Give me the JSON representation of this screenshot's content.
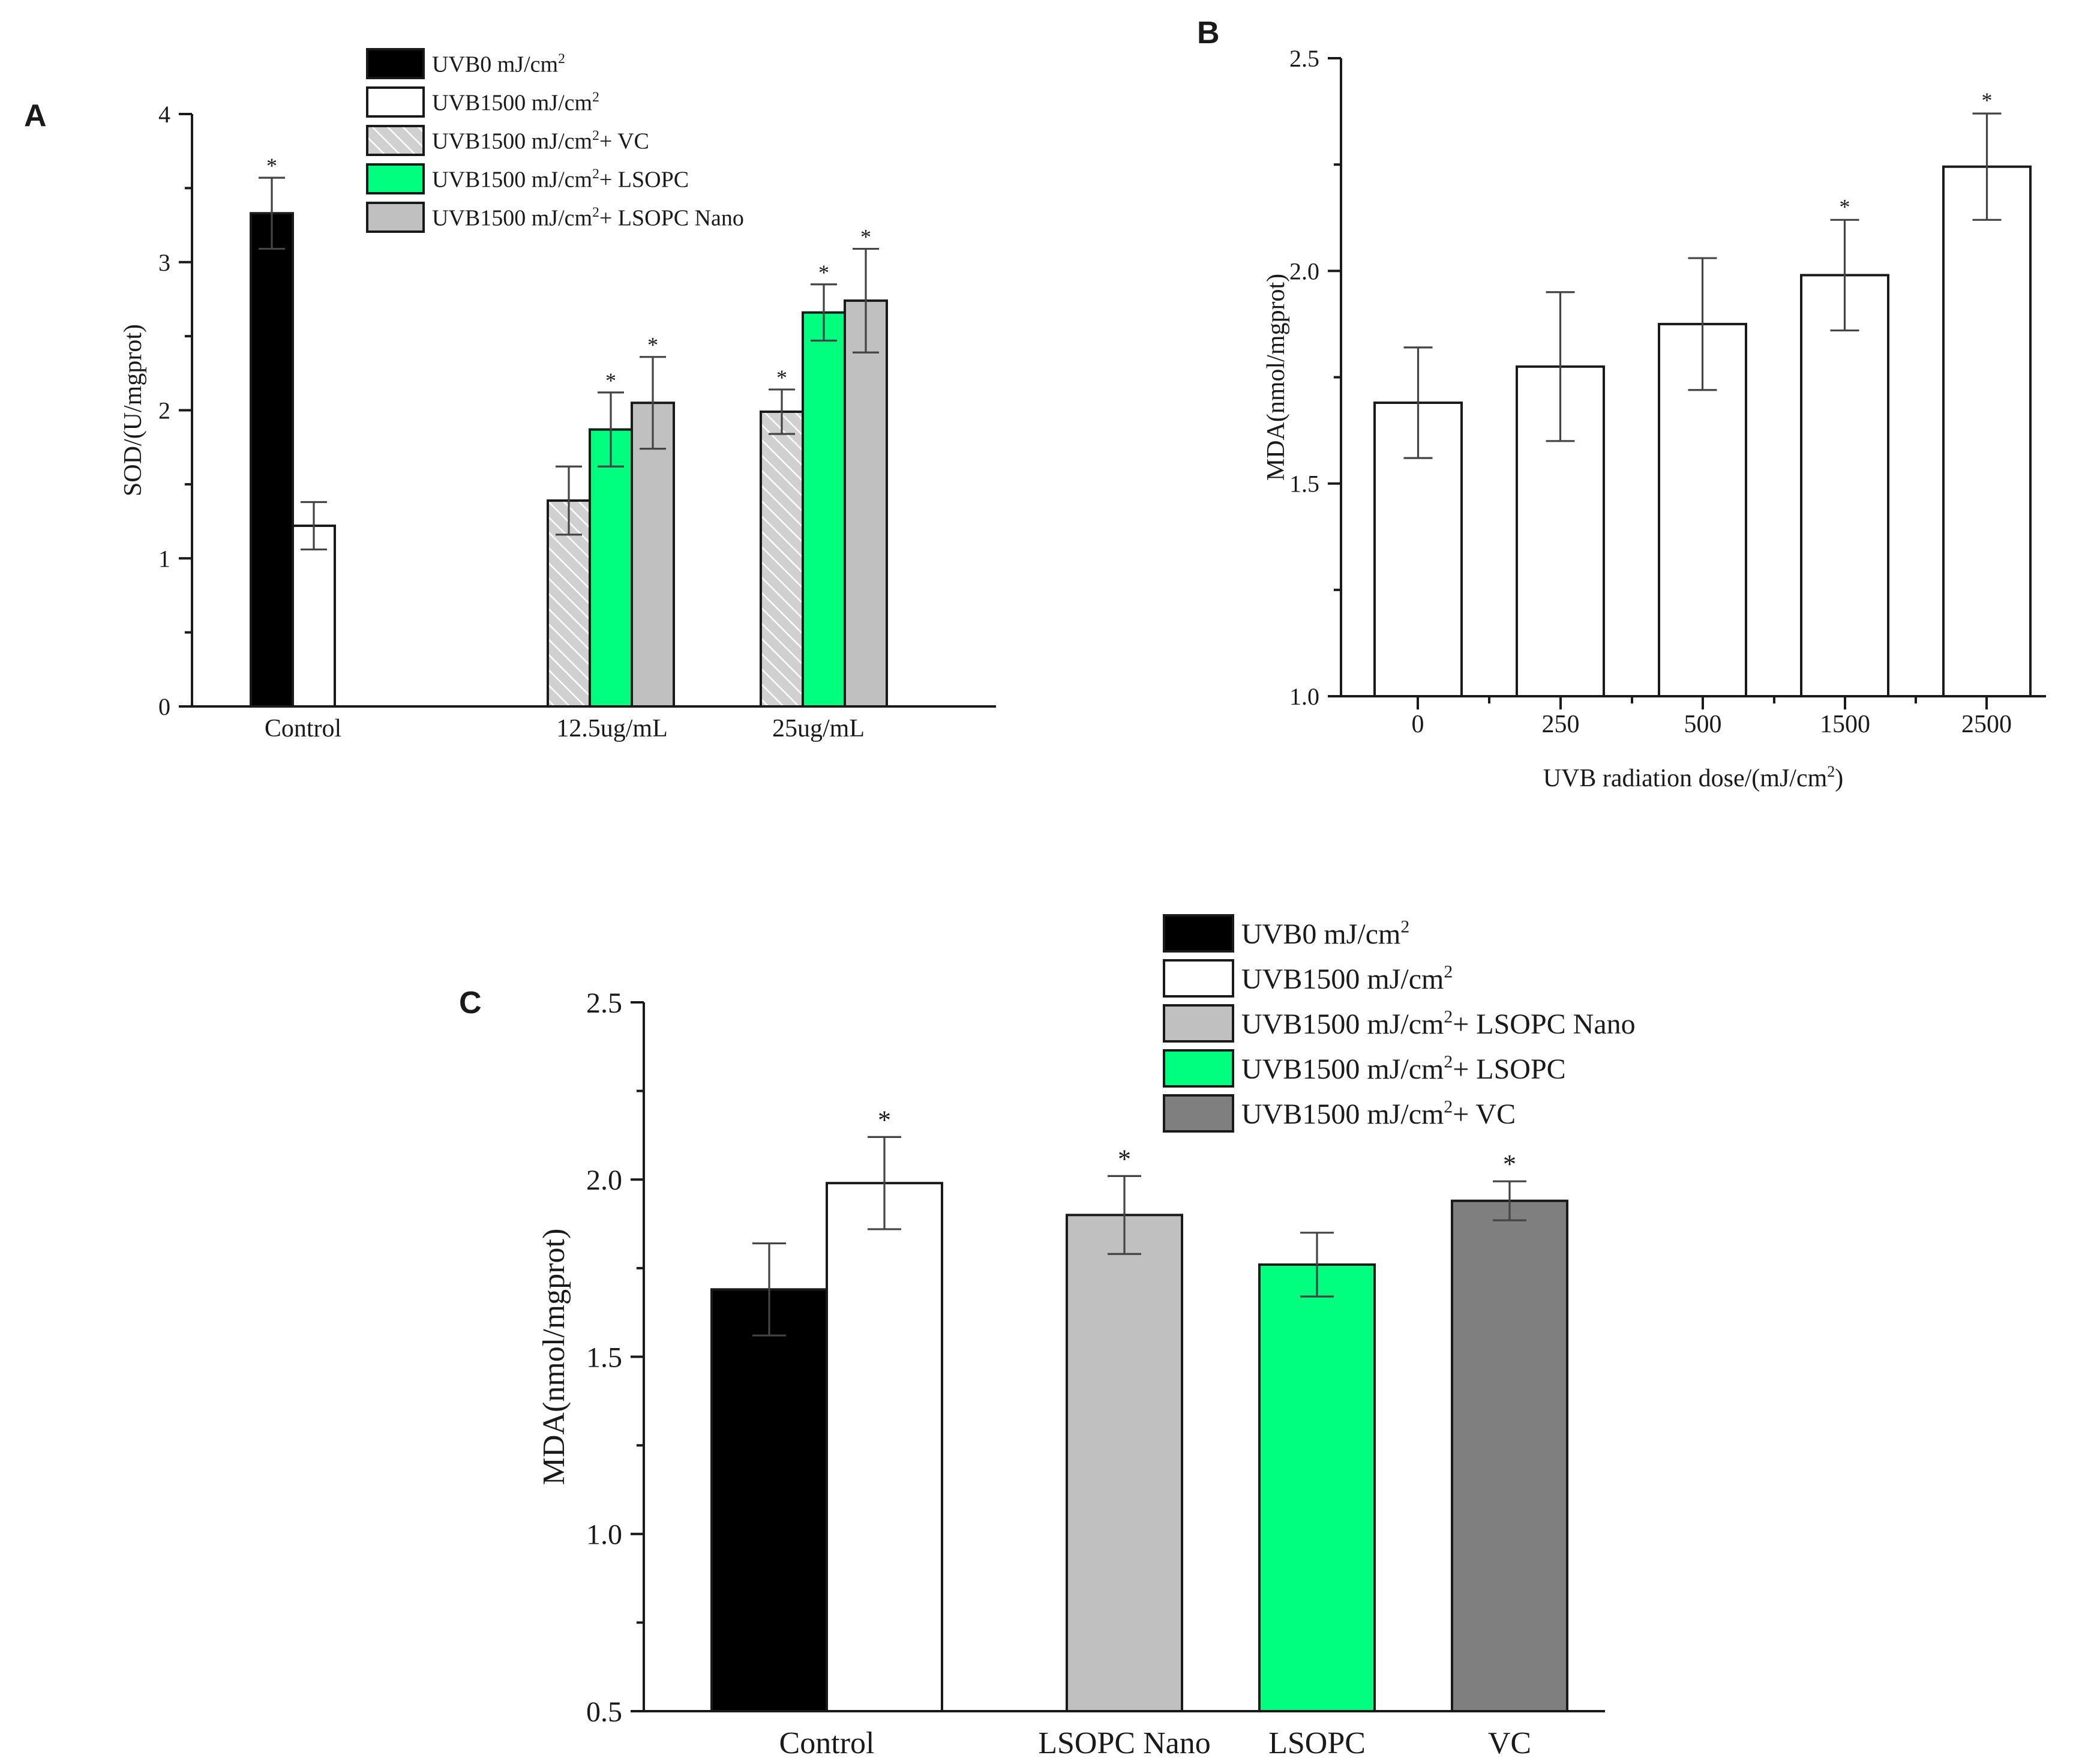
{
  "colors": {
    "uvb0": "#000000",
    "uvb1500": "#ffffff",
    "vc_hatch": "#d0d0d0",
    "lsopc": "#00ff7f",
    "lsopc_nano": "#c0c0c0",
    "vc_dark": "#7f7f7f",
    "axis": "#1a1a1a"
  },
  "chart_data": [
    {
      "panel": "A",
      "type": "bar",
      "title": "",
      "xlabel": "",
      "ylabel": "SOD/(U/mgprot)",
      "ylim": [
        0,
        4
      ],
      "yticks": [
        "0",
        "1",
        "2",
        "3",
        "4"
      ],
      "categories": [
        "Control",
        "12.5ug/mL",
        "25ug/mL"
      ],
      "legend": {
        "placement": "top-center",
        "entries": [
          {
            "text": "UVB0 mJ/cm",
            "sup": "2",
            "suffix": "",
            "fill": "#000000",
            "pattern": "solid"
          },
          {
            "text": "UVB1500 mJ/cm",
            "sup": "2",
            "suffix": "",
            "fill": "#ffffff",
            "pattern": "solid"
          },
          {
            "text": "UVB1500 mJ/cm",
            "sup": "2",
            "suffix": "+ VC",
            "fill": "#d0d0d0",
            "pattern": "hatch"
          },
          {
            "text": "UVB1500 mJ/cm",
            "sup": "2",
            "suffix": "+ LSOPC",
            "fill": "#00ff7f",
            "pattern": "solid"
          },
          {
            "text": "UVB1500 mJ/cm",
            "sup": "2",
            "suffix": "+ LSOPC Nano",
            "fill": "#c0c0c0",
            "pattern": "solid"
          }
        ]
      },
      "bars": [
        {
          "category": "Control",
          "series": "UVB0 mJ/cm2",
          "value": 3.33,
          "error": 0.24,
          "sig": "*",
          "fill": "#000000",
          "pattern": "solid"
        },
        {
          "category": "Control",
          "series": "UVB1500 mJ/cm2",
          "value": 1.22,
          "error": 0.16,
          "sig": "",
          "fill": "#ffffff",
          "pattern": "solid"
        },
        {
          "category": "12.5ug/mL",
          "series": "UVB1500 mJ/cm2+ VC",
          "value": 1.39,
          "error": 0.23,
          "sig": "",
          "fill": "#d0d0d0",
          "pattern": "hatch"
        },
        {
          "category": "12.5ug/mL",
          "series": "UVB1500 mJ/cm2+ LSOPC",
          "value": 1.87,
          "error": 0.25,
          "sig": "*",
          "fill": "#00ff7f",
          "pattern": "solid"
        },
        {
          "category": "12.5ug/mL",
          "series": "UVB1500 mJ/cm2+ LSOPC Nano",
          "value": 2.05,
          "error": 0.31,
          "sig": "*",
          "fill": "#c0c0c0",
          "pattern": "solid"
        },
        {
          "category": "25ug/mL",
          "series": "UVB1500 mJ/cm2+ VC",
          "value": 1.99,
          "error": 0.15,
          "sig": "*",
          "fill": "#d0d0d0",
          "pattern": "hatch"
        },
        {
          "category": "25ug/mL",
          "series": "UVB1500 mJ/cm2+ LSOPC",
          "value": 2.66,
          "error": 0.19,
          "sig": "*",
          "fill": "#00ff7f",
          "pattern": "solid"
        },
        {
          "category": "25ug/mL",
          "series": "UVB1500 mJ/cm2+ LSOPC Nano",
          "value": 2.74,
          "error": 0.35,
          "sig": "*",
          "fill": "#c0c0c0",
          "pattern": "solid"
        }
      ]
    },
    {
      "panel": "B",
      "type": "bar",
      "title": "",
      "xlabel": "UVB radiation dose/(mJ/cm",
      "xlabel_sup": "2",
      "xlabel_suffix": ")",
      "ylabel": "MDA(nmol/mgprot)",
      "ylim": [
        1.0,
        2.5
      ],
      "yticks": [
        "1.0",
        "1.5",
        "2.0",
        "2.5"
      ],
      "categories": [
        "0",
        "250",
        "500",
        "1500",
        "2500"
      ],
      "bars": [
        {
          "category": "0",
          "value": 1.69,
          "error": 0.13,
          "sig": "",
          "fill": "#ffffff"
        },
        {
          "category": "250",
          "value": 1.775,
          "error": 0.175,
          "sig": "",
          "fill": "#ffffff"
        },
        {
          "category": "500",
          "value": 1.875,
          "error": 0.155,
          "sig": "",
          "fill": "#ffffff"
        },
        {
          "category": "1500",
          "value": 1.99,
          "error": 0.13,
          "sig": "*",
          "fill": "#ffffff"
        },
        {
          "category": "2500",
          "value": 2.245,
          "error": 0.125,
          "sig": "*",
          "fill": "#ffffff"
        }
      ]
    },
    {
      "panel": "C",
      "type": "bar",
      "title": "",
      "xlabel": "",
      "ylabel": "MDA(nmol/mgprot)",
      "ylim": [
        0.5,
        2.5
      ],
      "yticks": [
        "0.5",
        "1.0",
        "1.5",
        "2.0",
        "2.5"
      ],
      "categories": [
        "Control",
        "LSOPC Nano",
        "LSOPC",
        "VC"
      ],
      "legend": {
        "placement": "top-center",
        "entries": [
          {
            "text": "UVB0 mJ/cm",
            "sup": "2",
            "suffix": "",
            "fill": "#000000",
            "pattern": "solid"
          },
          {
            "text": "UVB1500 mJ/cm",
            "sup": "2",
            "suffix": "",
            "fill": "#ffffff",
            "pattern": "solid"
          },
          {
            "text": "UVB1500 mJ/cm",
            "sup": "2",
            "suffix": "+ LSOPC Nano",
            "fill": "#c0c0c0",
            "pattern": "solid"
          },
          {
            "text": "UVB1500 mJ/cm",
            "sup": "2",
            "suffix": "+ LSOPC",
            "fill": "#00ff7f",
            "pattern": "solid"
          },
          {
            "text": "UVB1500 mJ/cm",
            "sup": "2",
            "suffix": "+ VC",
            "fill": "#7f7f7f",
            "pattern": "solid"
          }
        ]
      },
      "bars": [
        {
          "category": "Control",
          "series": "UVB0 mJ/cm2",
          "value": 1.69,
          "error": 0.13,
          "sig": "",
          "fill": "#000000"
        },
        {
          "category": "Control",
          "series": "UVB1500 mJ/cm2",
          "value": 1.99,
          "error": 0.13,
          "sig": "*",
          "fill": "#ffffff"
        },
        {
          "category": "LSOPC Nano",
          "series": "UVB1500 mJ/cm2+ LSOPC Nano",
          "value": 1.9,
          "error": 0.11,
          "sig": "*",
          "fill": "#c0c0c0"
        },
        {
          "category": "LSOPC",
          "series": "UVB1500 mJ/cm2+ LSOPC",
          "value": 1.76,
          "error": 0.09,
          "sig": "",
          "fill": "#00ff7f"
        },
        {
          "category": "VC",
          "series": "UVB1500 mJ/cm2+ VC",
          "value": 1.94,
          "error": 0.055,
          "sig": "*",
          "fill": "#7f7f7f"
        }
      ]
    }
  ],
  "panel_labels": [
    "A",
    "B",
    "C"
  ]
}
